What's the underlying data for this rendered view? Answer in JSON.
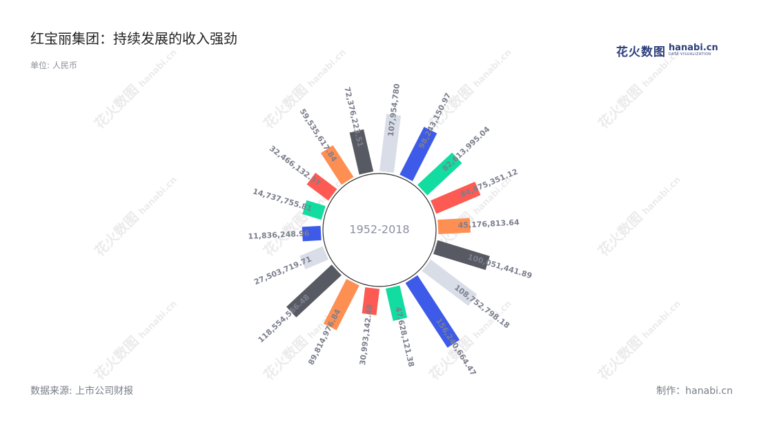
{
  "header": {
    "title": "红宝丽集团：持续发展的收入强劲",
    "unit": "单位: 人民币"
  },
  "footer": {
    "source": "数据来源: 上市公司财报",
    "maker": "制作：hanabi.cn"
  },
  "logo": {
    "text_cn": "花火数图",
    "text_en": "hanabi.cn",
    "subtitle": "DATA VISUALIZATION"
  },
  "watermark": {
    "text_cn": "花火数图",
    "text_en": "hanabi.cn"
  },
  "colors": {
    "palette": [
      "#d9dde8",
      "#3d5ae8",
      "#13dca0",
      "#fc5a52",
      "#fe8f52",
      "#585a63"
    ],
    "label": "#7c7f8d",
    "center_text": "#8b8ea0",
    "circle_stroke": "#2b2b2b"
  },
  "chart_data": {
    "type": "radial-bar",
    "center_label": "1952-2018",
    "values": [
      {
        "label": "107,954,780",
        "value": 107954780.0
      },
      {
        "label": "98,243,150.97",
        "value": 98243150.97
      },
      {
        "label": "82,613,995.04",
        "value": 82613995.04
      },
      {
        "label": "84,475,351.12",
        "value": 84475351.12
      },
      {
        "label": "45,176,813.64",
        "value": 45176813.64
      },
      {
        "label": "100,051,441.89",
        "value": 100051441.89
      },
      {
        "label": "108,752,798.18",
        "value": 108752798.18
      },
      {
        "label": "156,240,664.47",
        "value": 156240664.47
      },
      {
        "label": "47,628,121.38",
        "value": 47628121.38
      },
      {
        "label": "30,993,142.48",
        "value": 30993142.48
      },
      {
        "label": "89,814,976.84",
        "value": 89814976.84
      },
      {
        "label": "118,554,566.48",
        "value": 118554566.48
      },
      {
        "label": "27,503,719.71",
        "value": 27503719.71
      },
      {
        "label": "11,836,248.96",
        "value": 11836248.96
      },
      {
        "label": "14,737,755.81",
        "value": 14737755.81
      },
      {
        "label": "32,466,132.37",
        "value": 32466132.37
      },
      {
        "label": "59,535,617.84",
        "value": 59535617.84
      },
      {
        "label": "72,376,223.51",
        "value": 72376223.51
      }
    ]
  }
}
